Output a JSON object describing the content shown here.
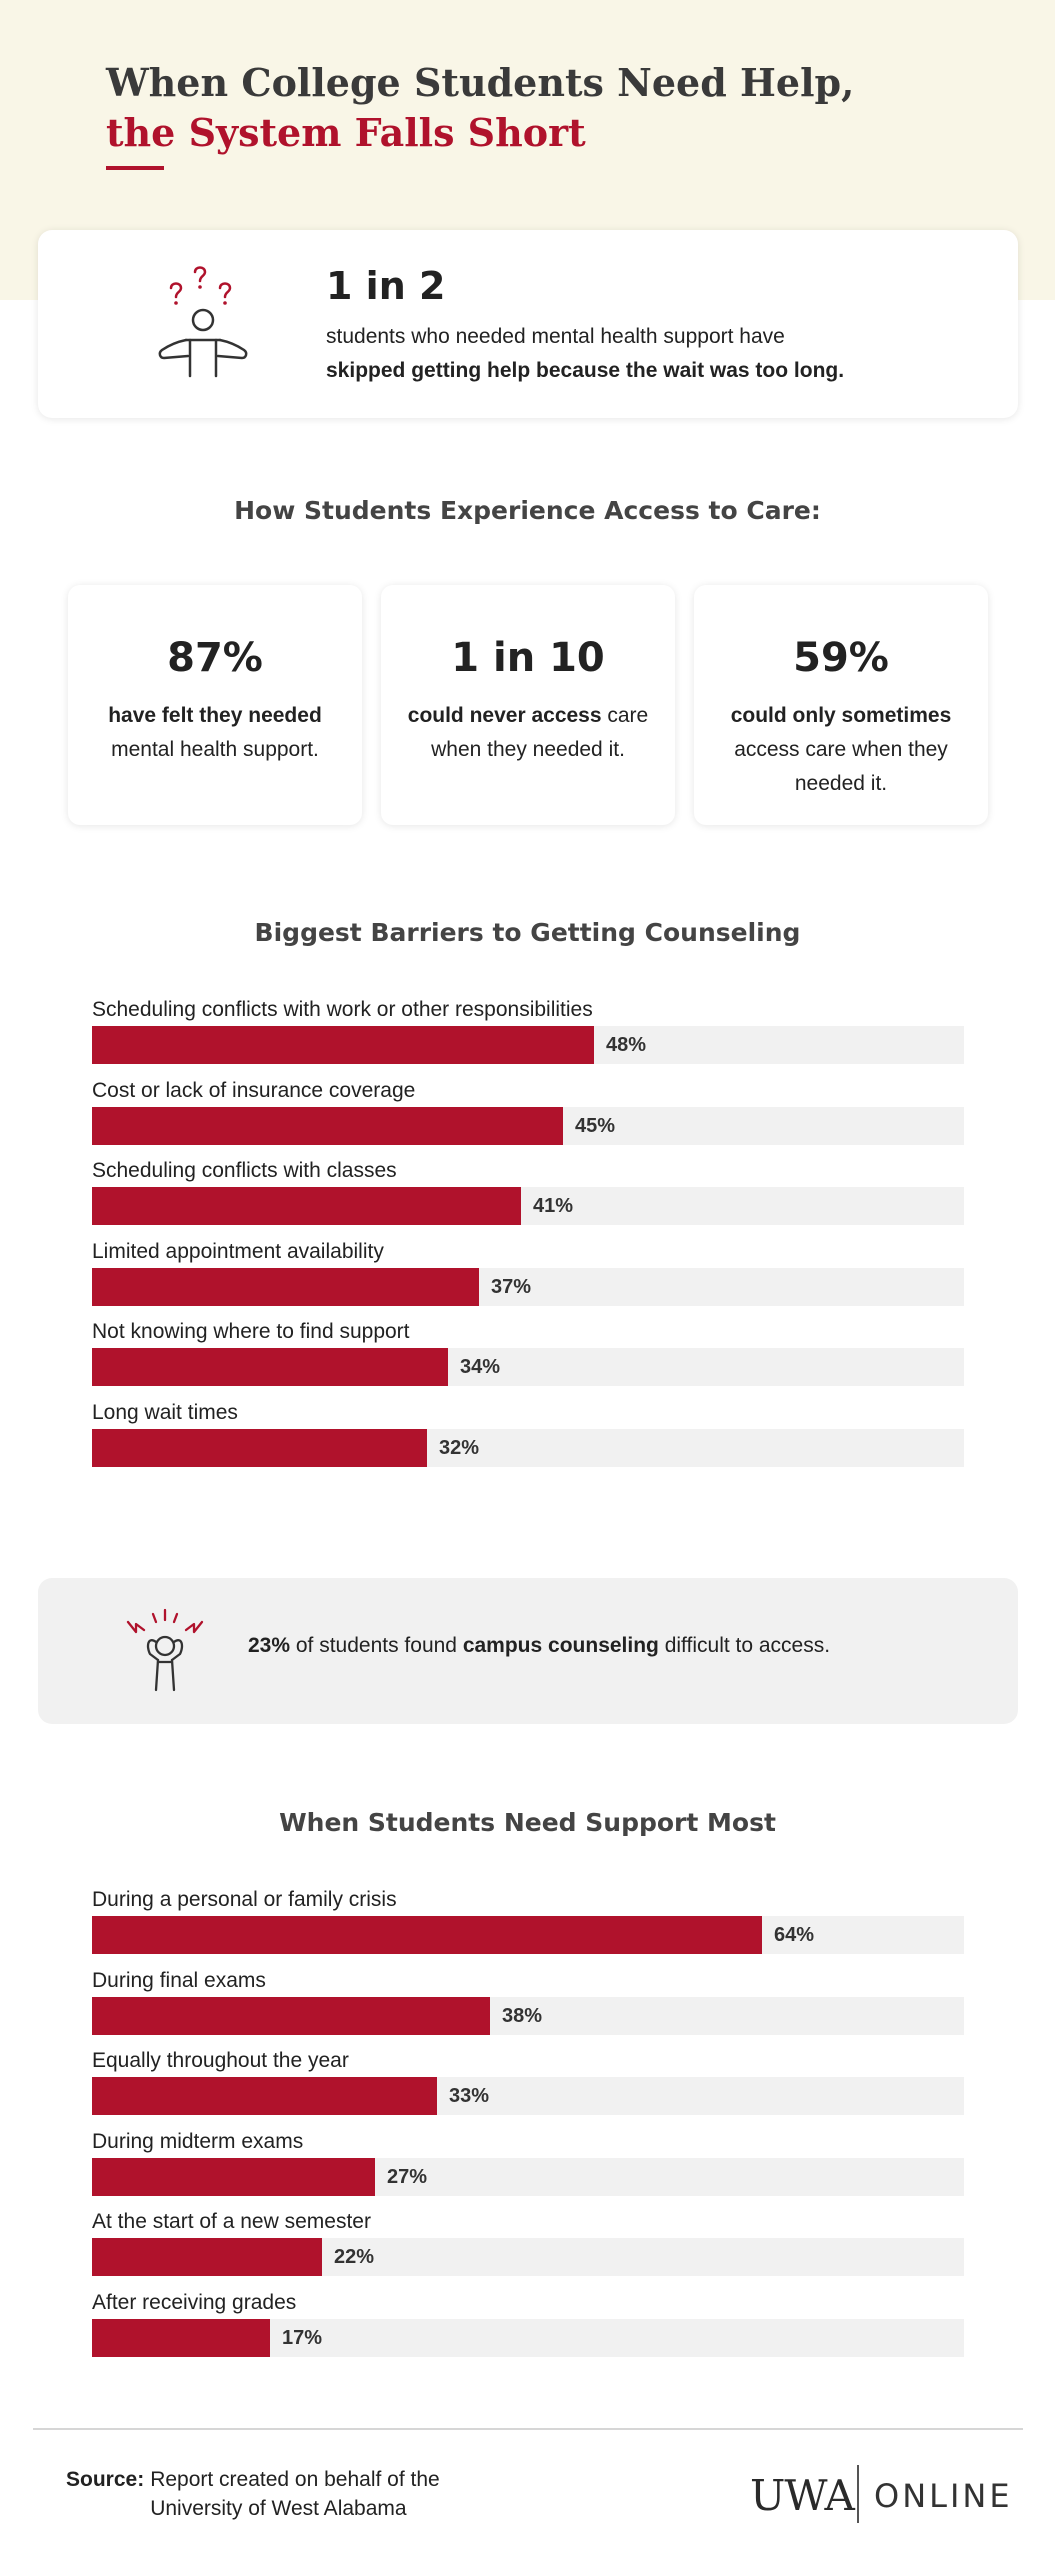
{
  "header": {
    "title_line1": "When College Students Need Help,",
    "title_line2": "the System Falls Short"
  },
  "hero": {
    "icon": "confused-person-icon",
    "big": "1 in 2",
    "text_plain": "students who needed mental health support have",
    "text_bold": "skipped getting help because the wait was too long."
  },
  "access": {
    "title": "How Students Experience Access to Care:",
    "cards": [
      {
        "big": "87%",
        "bold": "have felt they needed",
        "plain": " mental health support."
      },
      {
        "big": "1 in 10",
        "bold": "could never access",
        "plain": " care when they needed it."
      },
      {
        "big": "59%",
        "bold": "could only sometimes",
        "plain": " access care when they needed it."
      }
    ]
  },
  "colors": {
    "accent": "#b0122c",
    "track": "#f1f1f1",
    "band": "#f9f6e7"
  },
  "callout": {
    "icon": "stressed-person-icon",
    "pct": "23%",
    "text1": " of students found ",
    "bold": "campus counseling",
    "text2": " difficult to access."
  },
  "chart_data": [
    {
      "type": "bar",
      "title": "Biggest Barriers to Getting Counseling",
      "orientation": "horizontal",
      "unit": "%",
      "xlim": [
        0,
        100
      ],
      "categories": [
        "Scheduling conflicts with work or other responsibilities",
        "Cost or lack of insurance coverage",
        "Scheduling conflicts with classes",
        "Limited appointment availability",
        "Not knowing where to find support",
        "Long wait times"
      ],
      "values": [
        48,
        45,
        41,
        37,
        34,
        32
      ],
      "labels": [
        "48%",
        "45%",
        "41%",
        "37%",
        "34%",
        "32%"
      ]
    },
    {
      "type": "bar",
      "title": "When Students Need Support Most",
      "orientation": "horizontal",
      "unit": "%",
      "xlim": [
        0,
        100
      ],
      "categories": [
        "During a personal or family crisis",
        "During final exams",
        "Equally throughout the year",
        "During midterm exams",
        "At the start of a new semester",
        "After receiving grades"
      ],
      "values": [
        64,
        38,
        33,
        27,
        22,
        17
      ],
      "labels": [
        "64%",
        "38%",
        "33%",
        "27%",
        "22%",
        "17%"
      ]
    }
  ],
  "footer": {
    "source_label": "Source:",
    "source_text": "Report created on behalf of the University of West Alabama",
    "logo_uwa": "UWA",
    "logo_online": "ONLINE"
  }
}
